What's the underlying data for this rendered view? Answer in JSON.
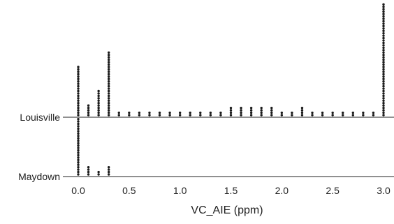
{
  "chart_data": {
    "type": "scatter",
    "subtype": "dot-plot",
    "title": "",
    "xlabel": "VC_AIE (ppm)",
    "ylabel": "",
    "xlim": [
      -0.08,
      3.12
    ],
    "xticks": [
      "0.0",
      "0.5",
      "1.0",
      "1.5",
      "2.0",
      "2.5",
      "3.0"
    ],
    "grid": false,
    "legend": "none",
    "marker_color": "#1a1a1a",
    "categories": [
      "Louisville",
      "Maydown"
    ],
    "series": [
      {
        "category": "Louisville",
        "bins": [
          {
            "x": 0.0,
            "count": 21
          },
          {
            "x": 0.1,
            "count": 5
          },
          {
            "x": 0.2,
            "count": 11
          },
          {
            "x": 0.3,
            "count": 27
          },
          {
            "x": 0.4,
            "count": 2
          },
          {
            "x": 0.5,
            "count": 2
          },
          {
            "x": 0.6,
            "count": 2
          },
          {
            "x": 0.7,
            "count": 2
          },
          {
            "x": 0.8,
            "count": 2
          },
          {
            "x": 0.9,
            "count": 2
          },
          {
            "x": 1.0,
            "count": 2
          },
          {
            "x": 1.1,
            "count": 2
          },
          {
            "x": 1.2,
            "count": 2
          },
          {
            "x": 1.3,
            "count": 2
          },
          {
            "x": 1.4,
            "count": 2
          },
          {
            "x": 1.5,
            "count": 4
          },
          {
            "x": 1.6,
            "count": 4
          },
          {
            "x": 1.7,
            "count": 4
          },
          {
            "x": 1.8,
            "count": 4
          },
          {
            "x": 1.9,
            "count": 4
          },
          {
            "x": 2.0,
            "count": 2
          },
          {
            "x": 2.1,
            "count": 2
          },
          {
            "x": 2.2,
            "count": 4
          },
          {
            "x": 2.3,
            "count": 2
          },
          {
            "x": 2.4,
            "count": 2
          },
          {
            "x": 2.5,
            "count": 2
          },
          {
            "x": 2.6,
            "count": 2
          },
          {
            "x": 2.7,
            "count": 2
          },
          {
            "x": 2.8,
            "count": 2
          },
          {
            "x": 2.9,
            "count": 2
          },
          {
            "x": 3.0,
            "count": 47
          }
        ]
      },
      {
        "category": "Maydown",
        "bins": [
          {
            "x": 0.0,
            "count": 24
          },
          {
            "x": 0.1,
            "count": 4
          },
          {
            "x": 0.2,
            "count": 2
          },
          {
            "x": 0.3,
            "count": 4
          }
        ]
      }
    ]
  }
}
